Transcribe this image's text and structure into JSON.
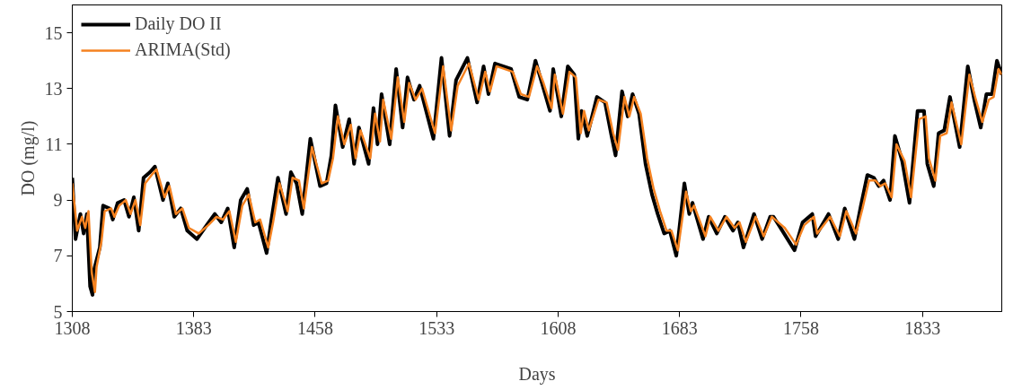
{
  "chart_data": {
    "type": "line",
    "xlabel": "Days",
    "ylabel": "DO (mg/l)",
    "xlim": [
      1308,
      1882
    ],
    "xticks": [
      1308,
      1383,
      1458,
      1533,
      1608,
      1683,
      1758,
      1833
    ],
    "ylim": [
      5,
      16
    ],
    "yticks": [
      5,
      7,
      9,
      11,
      13,
      15
    ],
    "grid": false,
    "legend": "top left",
    "line_style": "solid",
    "marker": "none",
    "series": [
      {
        "name": "Daily DO II",
        "color": "#000000",
        "x": [
          1308,
          1310,
          1313,
          1315,
          1317,
          1319,
          1320.5,
          1321,
          1325,
          1327,
          1331,
          1333,
          1336,
          1340,
          1343,
          1346,
          1349,
          1352,
          1356,
          1359,
          1364,
          1367,
          1371,
          1375,
          1379,
          1385,
          1391,
          1396,
          1400,
          1404,
          1408,
          1412,
          1416,
          1420,
          1423,
          1428,
          1431,
          1435,
          1440,
          1443,
          1446.5,
          1450,
          1455,
          1461,
          1465,
          1468,
          1470.5,
          1475,
          1479,
          1482,
          1485,
          1491,
          1494,
          1496.5,
          1499,
          1504,
          1508,
          1512,
          1515,
          1519,
          1522.5,
          1531,
          1536,
          1541,
          1545,
          1552,
          1558,
          1562,
          1565,
          1569,
          1579,
          1584,
          1589,
          1594,
          1598,
          1603,
          1605,
          1610,
          1614,
          1618,
          1620.5,
          1622.5,
          1626,
          1632,
          1637,
          1641,
          1643.5,
          1647.5,
          1651,
          1654,
          1658,
          1662,
          1666,
          1669.5,
          1673.5,
          1677,
          1681,
          1686,
          1689,
          1691,
          1697.5,
          1701,
          1706,
          1711,
          1716,
          1719,
          1722.5,
          1729,
          1734,
          1739,
          1741,
          1746.5,
          1754,
          1759,
          1765,
          1767,
          1775,
          1781,
          1785,
          1791,
          1795,
          1799,
          1803,
          1806,
          1809,
          1813,
          1816,
          1820.5,
          1825,
          1830,
          1834,
          1836,
          1840,
          1843,
          1846.5,
          1850,
          1856,
          1861,
          1865,
          1869,
          1872.5,
          1876,
          1879,
          1882
        ],
        "values": [
          9.8,
          7.6,
          8.5,
          7.8,
          8.5,
          5.9,
          5.6,
          6.4,
          7.3,
          8.8,
          8.7,
          8.3,
          8.9,
          9.0,
          8.4,
          9.1,
          7.9,
          9.8,
          10.0,
          10.2,
          9.0,
          9.6,
          8.4,
          8.7,
          7.9,
          7.6,
          8.1,
          8.5,
          8.2,
          8.7,
          7.3,
          9.0,
          9.4,
          8.1,
          8.2,
          7.1,
          8.3,
          9.8,
          8.5,
          10.0,
          9.6,
          8.5,
          11.2,
          9.5,
          9.6,
          10.6,
          12.4,
          10.9,
          11.9,
          10.3,
          11.6,
          10.3,
          12.3,
          11.0,
          12.8,
          11.0,
          13.7,
          11.6,
          13.4,
          12.6,
          13.1,
          11.2,
          14.1,
          11.3,
          13.3,
          14.1,
          12.5,
          13.8,
          12.8,
          13.9,
          13.7,
          12.7,
          12.6,
          14.0,
          13.2,
          12.2,
          13.7,
          12.0,
          13.8,
          13.5,
          11.2,
          12.2,
          11.3,
          12.7,
          12.5,
          11.3,
          10.6,
          12.9,
          12.0,
          12.8,
          12.1,
          10.3,
          9.2,
          8.5,
          7.8,
          7.9,
          7.0,
          9.6,
          8.5,
          8.9,
          7.6,
          8.4,
          7.8,
          8.4,
          7.9,
          8.2,
          7.3,
          8.5,
          7.6,
          8.4,
          8.4,
          7.9,
          7.2,
          8.2,
          8.5,
          7.7,
          8.5,
          7.6,
          8.7,
          7.6,
          8.8,
          9.9,
          9.8,
          9.5,
          9.7,
          9.0,
          11.3,
          10.4,
          8.9,
          12.2,
          12.2,
          10.3,
          9.5,
          11.4,
          11.5,
          12.7,
          10.9,
          13.8,
          12.6,
          11.6,
          12.8,
          12.8,
          14.0,
          13.5
        ]
      },
      {
        "name": "ARIMA(Std)",
        "color": "#f58220",
        "x": [
          1308,
          1311,
          1314,
          1316,
          1318,
          1320,
          1322,
          1323,
          1326,
          1328,
          1332,
          1334,
          1337,
          1341,
          1344,
          1347,
          1350,
          1353,
          1357,
          1360,
          1365,
          1368,
          1372,
          1376,
          1380,
          1386,
          1392,
          1397,
          1401,
          1405,
          1409,
          1413,
          1417,
          1421,
          1424,
          1429,
          1432,
          1436,
          1441,
          1444,
          1448,
          1451,
          1456,
          1462,
          1466,
          1469,
          1472,
          1476,
          1480,
          1483,
          1486,
          1492,
          1495,
          1498,
          1500,
          1505,
          1509,
          1513,
          1516,
          1520,
          1524,
          1532,
          1537,
          1542,
          1546,
          1553,
          1559,
          1563,
          1566,
          1570,
          1580,
          1585,
          1590,
          1595,
          1599,
          1604,
          1606,
          1611,
          1615,
          1619,
          1622,
          1624,
          1627,
          1633,
          1638,
          1642,
          1645,
          1649,
          1652,
          1655,
          1659,
          1663,
          1667,
          1671,
          1675,
          1678,
          1682,
          1687,
          1690,
          1692,
          1699,
          1702,
          1707,
          1712,
          1717,
          1720,
          1724,
          1730,
          1735,
          1740,
          1742,
          1748,
          1755,
          1760,
          1766,
          1768,
          1776,
          1782,
          1786,
          1792,
          1796,
          1800,
          1804,
          1807,
          1810,
          1814,
          1817,
          1822,
          1826,
          1831,
          1835,
          1837,
          1841,
          1844,
          1848,
          1851,
          1857,
          1862,
          1866,
          1870,
          1874,
          1877,
          1880,
          1882
        ],
        "values": [
          9.6,
          7.9,
          8.4,
          8.0,
          8.6,
          6.4,
          5.7,
          6.6,
          7.5,
          8.6,
          8.7,
          8.4,
          8.8,
          9.0,
          8.5,
          9.0,
          8.1,
          9.6,
          9.9,
          10.1,
          9.1,
          9.5,
          8.5,
          8.7,
          8.0,
          7.8,
          8.1,
          8.4,
          8.3,
          8.6,
          7.5,
          8.8,
          9.2,
          8.2,
          8.3,
          7.3,
          8.2,
          9.6,
          8.6,
          9.8,
          9.7,
          8.7,
          10.9,
          9.6,
          9.7,
          10.5,
          12.0,
          11.0,
          11.7,
          10.5,
          11.5,
          10.5,
          12.1,
          11.1,
          12.6,
          11.2,
          13.4,
          11.8,
          13.2,
          12.6,
          13.0,
          11.4,
          13.8,
          11.5,
          13.1,
          13.9,
          12.6,
          13.6,
          12.9,
          13.8,
          13.6,
          12.8,
          12.7,
          13.8,
          13.2,
          12.3,
          13.5,
          12.1,
          13.6,
          13.4,
          11.4,
          12.2,
          11.5,
          12.6,
          12.5,
          11.4,
          10.8,
          12.7,
          12.0,
          12.7,
          12.1,
          10.5,
          9.4,
          8.6,
          7.9,
          7.9,
          7.2,
          9.3,
          8.6,
          8.8,
          7.7,
          8.4,
          7.9,
          8.4,
          8.0,
          8.2,
          7.5,
          8.4,
          7.7,
          8.4,
          8.3,
          8.0,
          7.4,
          8.1,
          8.4,
          7.8,
          8.4,
          7.7,
          8.6,
          7.8,
          8.7,
          9.7,
          9.7,
          9.5,
          9.6,
          9.1,
          11.0,
          10.4,
          9.1,
          11.9,
          12.0,
          10.5,
          9.7,
          11.3,
          11.4,
          12.5,
          11.0,
          13.5,
          12.6,
          11.8,
          12.6,
          12.7,
          13.7,
          13.5
        ]
      }
    ]
  }
}
